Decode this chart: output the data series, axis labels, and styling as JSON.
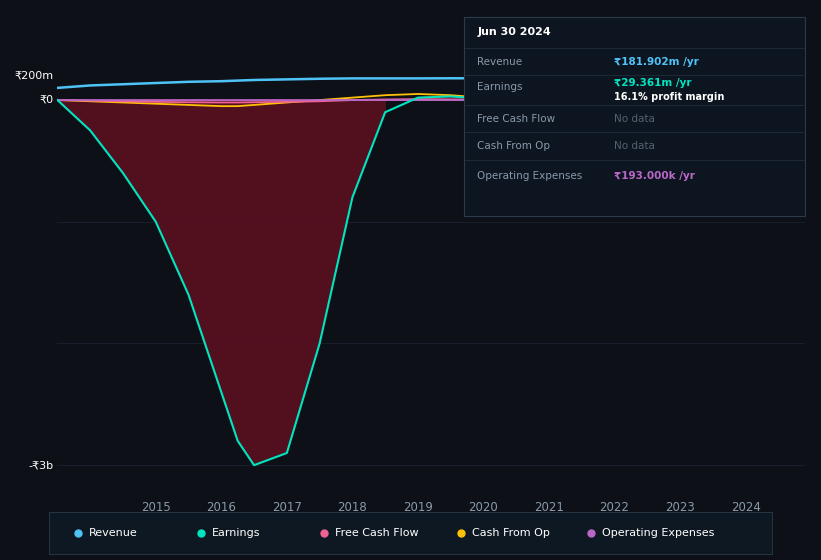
{
  "bg_color": "#0d1117",
  "plot_bg_color": "#0d1117",
  "y_label_top": "₹200m",
  "y_label_zero": "₹0",
  "y_label_bottom": "-₹3b",
  "x_ticks": [
    2015,
    2016,
    2017,
    2018,
    2019,
    2020,
    2021,
    2022,
    2023,
    2024
  ],
  "years": [
    2013.5,
    2014.0,
    2014.5,
    2015.0,
    2015.5,
    2016.0,
    2016.25,
    2016.5,
    2017.0,
    2017.5,
    2018.0,
    2018.5,
    2019.0,
    2019.5,
    2020.0,
    2020.5,
    2021.0,
    2021.5,
    2022.0,
    2022.5,
    2023.0,
    2023.5,
    2024.0,
    2024.5
  ],
  "revenue": [
    0.1,
    0.12,
    0.13,
    0.14,
    0.15,
    0.155,
    0.16,
    0.165,
    0.17,
    0.175,
    0.178,
    0.178,
    0.178,
    0.179,
    0.179,
    0.179,
    0.18,
    0.18,
    0.18,
    0.181,
    0.181,
    0.181,
    0.1819,
    0.182
  ],
  "earnings": [
    0.0,
    -0.25,
    -0.6,
    -1.0,
    -1.6,
    -2.4,
    -2.8,
    -3.0,
    -2.9,
    -2.0,
    -0.8,
    -0.1,
    0.02,
    0.03,
    0.01,
    -0.03,
    -0.02,
    0.01,
    0.02,
    0.02,
    0.025,
    0.027,
    0.0294,
    0.03
  ],
  "operating_expenses": [
    0.0,
    0.0,
    0.0,
    0.0,
    0.0,
    0.0,
    0.0,
    0.0,
    0.0,
    0.0,
    0.0,
    0.0,
    0.0,
    0.0,
    0.0,
    0.0,
    0.0,
    0.0,
    0.0,
    0.0,
    0.0,
    0.0,
    0.000193,
    0.000193
  ],
  "cash_from_op": [
    0.0,
    -0.01,
    -0.02,
    -0.03,
    -0.04,
    -0.05,
    -0.05,
    -0.04,
    -0.02,
    0.0,
    0.02,
    0.04,
    0.05,
    0.04,
    0.02,
    -0.01,
    -0.02,
    0.0,
    0.01,
    0.02,
    0.02,
    0.02,
    0.018,
    0.015
  ],
  "free_cash_flow": [
    0.0,
    -0.005,
    -0.01,
    -0.015,
    -0.018,
    -0.02,
    -0.02,
    -0.018,
    -0.015,
    -0.01,
    0.0,
    0.005,
    0.008,
    0.006,
    0.002,
    -0.003,
    -0.002,
    0.002,
    0.004,
    0.005,
    0.004,
    0.003,
    0.003,
    0.002
  ],
  "revenue_color": "#4fc3f7",
  "earnings_color": "#00e5c0",
  "free_cash_flow_color": "#f06292",
  "cash_from_op_color": "#ffc107",
  "operating_expenses_color": "#ba68c8",
  "fill_color": "#5a1020",
  "grid_color": "#1e2a3a",
  "text_color": "#8899aa",
  "nodata_color": "#556070",
  "info_box_bg": "#0d1520",
  "info_box_border": "#2a3a4a",
  "ylim_min": -3.25,
  "ylim_max": 0.27,
  "xlim_min": 2013.5,
  "xlim_max": 2024.9,
  "info_box": {
    "title": "Jun 30 2024",
    "revenue_label": "Revenue",
    "revenue_value": "₹181.902m /yr",
    "earnings_label": "Earnings",
    "earnings_value": "₹29.361m /yr",
    "profit_margin": "16.1% profit margin",
    "fcf_label": "Free Cash Flow",
    "fcf_value": "No data",
    "cashop_label": "Cash From Op",
    "cashop_value": "No data",
    "opex_label": "Operating Expenses",
    "opex_value": "₹193.000k /yr"
  },
  "legend_items": [
    {
      "color": "#4fc3f7",
      "label": "Revenue"
    },
    {
      "color": "#00e5c0",
      "label": "Earnings"
    },
    {
      "color": "#f06292",
      "label": "Free Cash Flow"
    },
    {
      "color": "#ffc107",
      "label": "Cash From Op"
    },
    {
      "color": "#ba68c8",
      "label": "Operating Expenses"
    }
  ]
}
